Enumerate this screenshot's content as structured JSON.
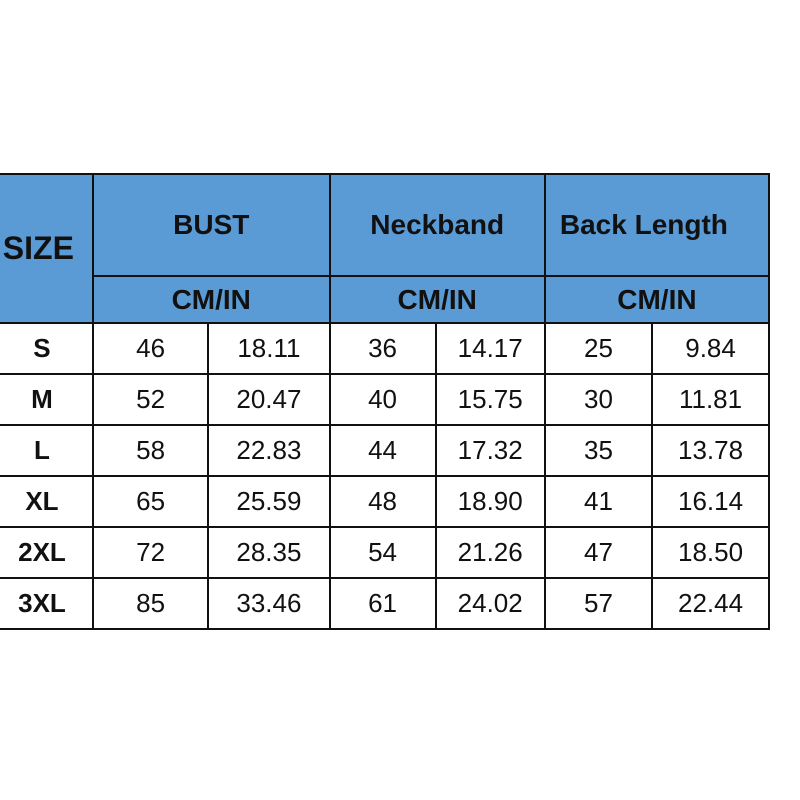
{
  "table": {
    "size_header": "SIZE",
    "groups": [
      {
        "label": "BUST",
        "unit": "CM/IN"
      },
      {
        "label": "Neckband",
        "unit": "CM/IN"
      },
      {
        "label": "Back Length",
        "unit": "CM/IN"
      }
    ],
    "rows": [
      {
        "size": "S",
        "values": [
          "46",
          "18.11",
          "36",
          "14.17",
          "25",
          "9.84"
        ]
      },
      {
        "size": "M",
        "values": [
          "52",
          "20.47",
          "40",
          "15.75",
          "30",
          "11.81"
        ]
      },
      {
        "size": "L",
        "values": [
          "58",
          "22.83",
          "44",
          "17.32",
          "35",
          "13.78"
        ]
      },
      {
        "size": "XL",
        "values": [
          "65",
          "25.59",
          "48",
          "18.90",
          "41",
          "16.14"
        ]
      },
      {
        "size": "2XL",
        "values": [
          "72",
          "28.35",
          "54",
          "21.26",
          "47",
          "18.50"
        ]
      },
      {
        "size": "3XL",
        "values": [
          "85",
          "33.46",
          "61",
          "24.02",
          "57",
          "22.44"
        ]
      }
    ],
    "header_color": "#5b9bd5"
  }
}
